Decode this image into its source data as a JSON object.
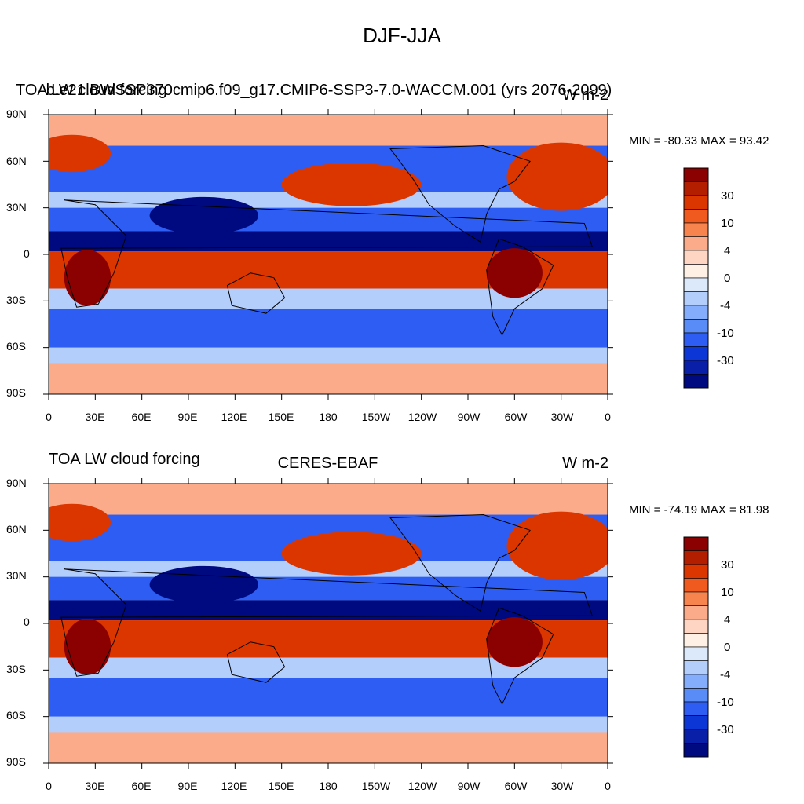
{
  "page_title": "DJF-JJA",
  "panels": [
    {
      "left_title": "TOA LW cloud forcing",
      "center_title": "b.e21.BWSSP370cmip6.f09_g17.CMIP6-SSP3-7.0-WACCM.001 (yrs 2076-2099)",
      "units": "W m-2",
      "minmax": "MIN = -80.33 MAX =  93.42"
    },
    {
      "left_title": "TOA LW cloud forcing",
      "center_title": "CERES-EBAF",
      "units": "W m-2",
      "minmax": "MIN = -74.19 MAX =  81.98"
    }
  ],
  "lat_labels": [
    "90N",
    "60N",
    "30N",
    "0",
    "30S",
    "60S",
    "90S"
  ],
  "lon_labels": [
    "0",
    "30E",
    "60E",
    "90E",
    "120E",
    "150E",
    "180",
    "150W",
    "120W",
    "90W",
    "60W",
    "30W",
    "0"
  ],
  "colorbar": {
    "labels": [
      "30",
      "10",
      "4",
      "0",
      "-4",
      "-10",
      "-30"
    ],
    "colors": [
      "#8b0000",
      "#b31e00",
      "#dc3600",
      "#f05a1e",
      "#f7834e",
      "#fbab8a",
      "#fdd5c2",
      "#fff0e6",
      "#dbe9fb",
      "#b4cefb",
      "#84aefb",
      "#5a8cf8",
      "#2e5df3",
      "#0c37d6",
      "#0a1fa8",
      "#000a80"
    ]
  },
  "map_colors": {
    "strong_pos": "#8b0000",
    "pos": "#dc3600",
    "light_pos": "#fbab8a",
    "neutral": "#fff0e6",
    "light_neg": "#b4cefb",
    "neg": "#2e5df3",
    "strong_neg": "#000a80"
  }
}
